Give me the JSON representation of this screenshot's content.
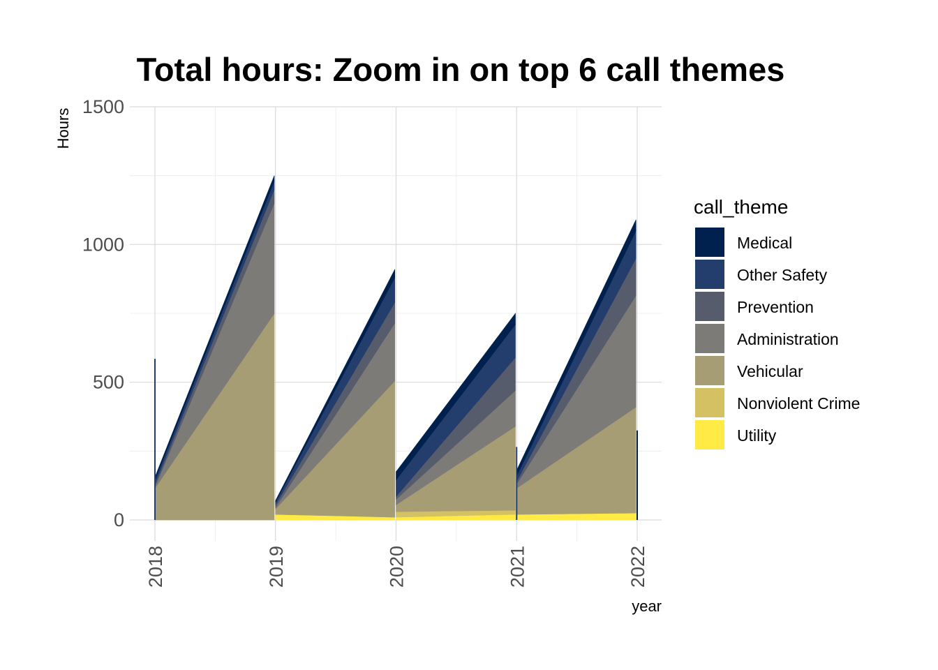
{
  "chart_data": {
    "type": "area",
    "title": "Total hours: Zoom in on top 6 call themes",
    "xlabel": "year",
    "ylabel": "Hours",
    "xlim": [
      2018,
      2022
    ],
    "ylim": [
      0,
      1500
    ],
    "x_ticks": [
      "2018",
      "2019",
      "2020",
      "2021",
      "2022"
    ],
    "y_ticks": [
      "0",
      "500",
      "1000",
      "1500"
    ],
    "grid": true,
    "stacked": true,
    "legend": {
      "title": "call_theme",
      "position": "right"
    },
    "series": [
      {
        "name": "Medical",
        "color": "#00204D",
        "segments": [
          {
            "x": [
              2018,
              2018.99
            ],
            "y": [
              10,
              20
            ]
          },
          {
            "x": [
              2019,
              2019.99
            ],
            "y": [
              5,
              30
            ]
          },
          {
            "x": [
              2020,
              2020.99
            ],
            "y": [
              30,
              40
            ]
          },
          {
            "x": [
              2021,
              2021.99
            ],
            "y": [
              20,
              40
            ]
          }
        ]
      },
      {
        "name": "Other Safety",
        "color": "#233D6D",
        "segments": [
          {
            "x": [
              2018,
              2018.99
            ],
            "y": [
              15,
              30
            ]
          },
          {
            "x": [
              2019,
              2019.99
            ],
            "y": [
              10,
              90
            ]
          },
          {
            "x": [
              2020,
              2020.99
            ],
            "y": [
              60,
              120
            ]
          },
          {
            "x": [
              2021,
              2021.99
            ],
            "y": [
              20,
              100
            ]
          }
        ]
      },
      {
        "name": "Prevention",
        "color": "#575C6D",
        "segments": [
          {
            "x": [
              2018,
              2018.99
            ],
            "y": [
              10,
              50
            ]
          },
          {
            "x": [
              2019,
              2019.99
            ],
            "y": [
              10,
              75
            ]
          },
          {
            "x": [
              2020,
              2020.99
            ],
            "y": [
              10,
              120
            ]
          },
          {
            "x": [
              2021,
              2021.99
            ],
            "y": [
              10,
              135
            ]
          }
        ]
      },
      {
        "name": "Administration",
        "color": "#7C7B78",
        "segments": [
          {
            "x": [
              2018,
              2018.99
            ],
            "y": [
              5,
              400
            ]
          },
          {
            "x": [
              2019,
              2019.99
            ],
            "y": [
              5,
              210
            ]
          },
          {
            "x": [
              2020,
              2020.99
            ],
            "y": [
              20,
              130
            ]
          },
          {
            "x": [
              2021,
              2021.99
            ],
            "y": [
              15,
              405
            ]
          }
        ]
      },
      {
        "name": "Vehicular",
        "color": "#A69D75",
        "segments": [
          {
            "x": [
              2018,
              2018.99
            ],
            "y": [
              115,
              750
            ]
          },
          {
            "x": [
              2019,
              2019.99
            ],
            "y": [
              20,
              495
            ]
          },
          {
            "x": [
              2020,
              2020.99
            ],
            "y": [
              25,
              305
            ]
          },
          {
            "x": [
              2021,
              2021.99
            ],
            "y": [
              95,
              385
            ]
          }
        ]
      },
      {
        "name": "Nonviolent Crime",
        "color": "#D3C164",
        "segments": [
          {
            "x": [
              2018,
              2018.99
            ],
            "y": [
              0,
              0
            ]
          },
          {
            "x": [
              2019,
              2019.99
            ],
            "y": [
              0,
              0
            ]
          },
          {
            "x": [
              2020,
              2020.99
            ],
            "y": [
              20,
              15
            ]
          },
          {
            "x": [
              2021,
              2021.99
            ],
            "y": [
              0,
              0
            ]
          }
        ]
      },
      {
        "name": "Utility",
        "color": "#FFEA46",
        "segments": [
          {
            "x": [
              2018,
              2018.99
            ],
            "y": [
              0,
              0
            ]
          },
          {
            "x": [
              2019,
              2019.99
            ],
            "y": [
              20,
              10
            ]
          },
          {
            "x": [
              2020,
              2020.99
            ],
            "y": [
              10,
              20
            ]
          },
          {
            "x": [
              2021,
              2021.99
            ],
            "y": [
              20,
              25
            ]
          }
        ]
      }
    ],
    "spikes": [
      {
        "x": 2018,
        "y": 585,
        "color": "#233D6D"
      },
      {
        "x": 2021,
        "y": 265,
        "color": "#233D6D"
      },
      {
        "x": 2022,
        "y": 325,
        "color": "#00204D"
      }
    ]
  }
}
